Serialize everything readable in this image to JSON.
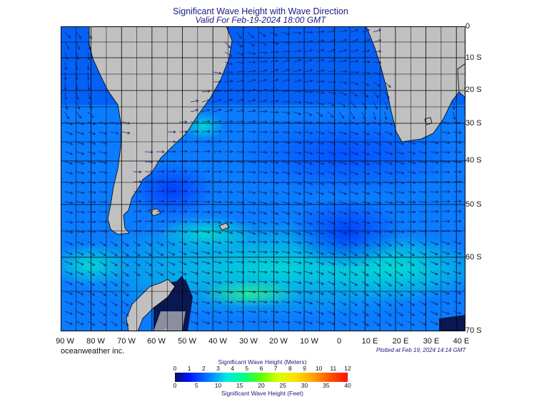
{
  "title": "Significant Wave Height with Wave Direction",
  "subtitle": "Valid For Feb-19-2024 18:00 GMT",
  "credit": "oceanweather inc.",
  "plotted": "Plotted at Feb 19, 2024 14:14 GMT",
  "lat_labels": [
    "0",
    "10 S",
    "20 S",
    "30 S",
    "40 S",
    "50 S",
    "60 S",
    "70 S"
  ],
  "lon_labels": [
    "90 W",
    "80 W",
    "70 W",
    "60 W",
    "50 W",
    "40 W",
    "30 W",
    "20 W",
    "10 W",
    "0",
    "10 E",
    "20 E",
    "30 E",
    "40 E"
  ],
  "legend": {
    "meters_title": "Significant Wave Height (Meters)",
    "feet_title": "Significant Wave Height (Feet)",
    "meters_ticks": [
      "0",
      "1",
      "2",
      "3",
      "4",
      "5",
      "6",
      "7",
      "8",
      "9",
      "10",
      "11",
      "12"
    ],
    "feet_ticks": [
      "0",
      "5",
      "10",
      "15",
      "20",
      "25",
      "30",
      "35",
      "40"
    ]
  },
  "colors": {
    "land": "#c0c0c0",
    "ice": "#0a1850",
    "grid": "#000000",
    "arrow": "#1a1a6e"
  }
}
